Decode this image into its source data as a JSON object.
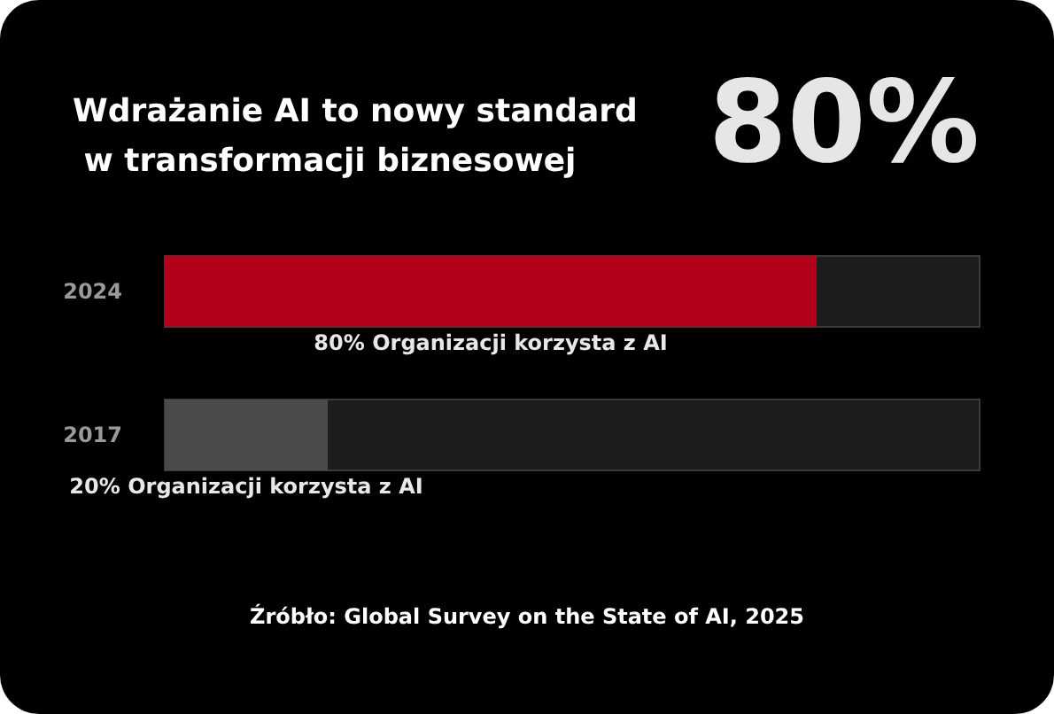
{
  "chart_data": {
    "type": "bar",
    "orientation": "horizontal",
    "title": "Wdrażanie AI to nowy standard w transformacji biznesowej",
    "categories": [
      "2024",
      "2017"
    ],
    "values": [
      80,
      20
    ],
    "colors": [
      "#b5001c",
      "#4a4a4a"
    ],
    "value_labels": [
      "80% Organizacji korzysta z AI",
      "20% Organizacji korzysta z AI"
    ],
    "xlim": [
      0,
      100
    ],
    "tick_labels": "y",
    "annotations": [
      "80%",
      "Źróbło: Global Survey on the State of AI, 2025"
    ]
  }
}
